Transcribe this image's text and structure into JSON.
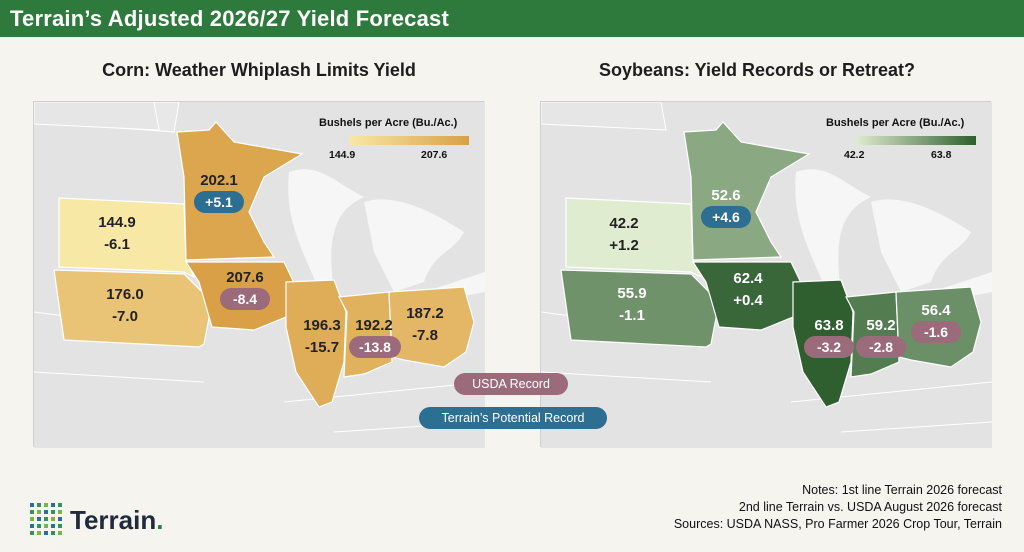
{
  "header": {
    "title": "Terrain’s Adjusted 2026/27 Yield Forecast"
  },
  "corn": {
    "title": "Corn: Weather Whiplash Limits Yield",
    "legend": {
      "title": "Bushels per Acre (Bu./Ac.)",
      "min": "144.9",
      "max": "207.6",
      "color_min": "#f8e8a6",
      "color_max": "#d9a047"
    },
    "states": {
      "mn": {
        "value": "202.1",
        "diff": "+5.1",
        "diff_type": "potential"
      },
      "sd": {
        "value": "144.9",
        "diff": "-6.1",
        "diff_type": "none"
      },
      "ne": {
        "value": "176.0",
        "diff": "-7.0",
        "diff_type": "none"
      },
      "ia": {
        "value": "207.6",
        "diff": "-8.4",
        "diff_type": "record"
      },
      "il": {
        "value": "196.3",
        "diff": "-15.7",
        "diff_type": "none"
      },
      "in": {
        "value": "192.2",
        "diff": "-13.8",
        "diff_type": "record"
      },
      "oh": {
        "value": "187.2",
        "diff": "-7.8",
        "diff_type": "none"
      }
    }
  },
  "soy": {
    "title": "Soybeans: Yield Records or Retreat?",
    "legend": {
      "title": "Bushels per Acre (Bu./Ac.)",
      "min": "42.2",
      "max": "63.8",
      "color_min": "#dfeccf",
      "color_max": "#2f5e2f"
    },
    "states": {
      "mn": {
        "value": "52.6",
        "diff": "+4.6",
        "diff_type": "potential"
      },
      "sd": {
        "value": "42.2",
        "diff": "+1.2",
        "diff_type": "none"
      },
      "ne": {
        "value": "55.9",
        "diff": "-1.1",
        "diff_type": "none"
      },
      "ia": {
        "value": "62.4",
        "diff": "+0.4",
        "diff_type": "none"
      },
      "il": {
        "value": "63.8",
        "diff": "-3.2",
        "diff_type": "record"
      },
      "in": {
        "value": "59.2",
        "diff": "-2.8",
        "diff_type": "record"
      },
      "oh": {
        "value": "56.4",
        "diff": "-1.6",
        "diff_type": "record"
      }
    }
  },
  "key": {
    "usda_record": "USDA Record",
    "potential_record": "Terrain’s Potential Record",
    "usda_color": "#9b6b7c",
    "potential_color": "#2d6e93"
  },
  "notes": {
    "line1": "Notes: 1st line Terrain 2026 forecast",
    "line2": "2nd line Terrain vs. USDA August 2026 forecast",
    "line3": "Sources: USDA NASS, Pro Farmer 2026 Crop Tour, Terrain"
  },
  "logo": {
    "text": "Terrain",
    "mark": "."
  }
}
